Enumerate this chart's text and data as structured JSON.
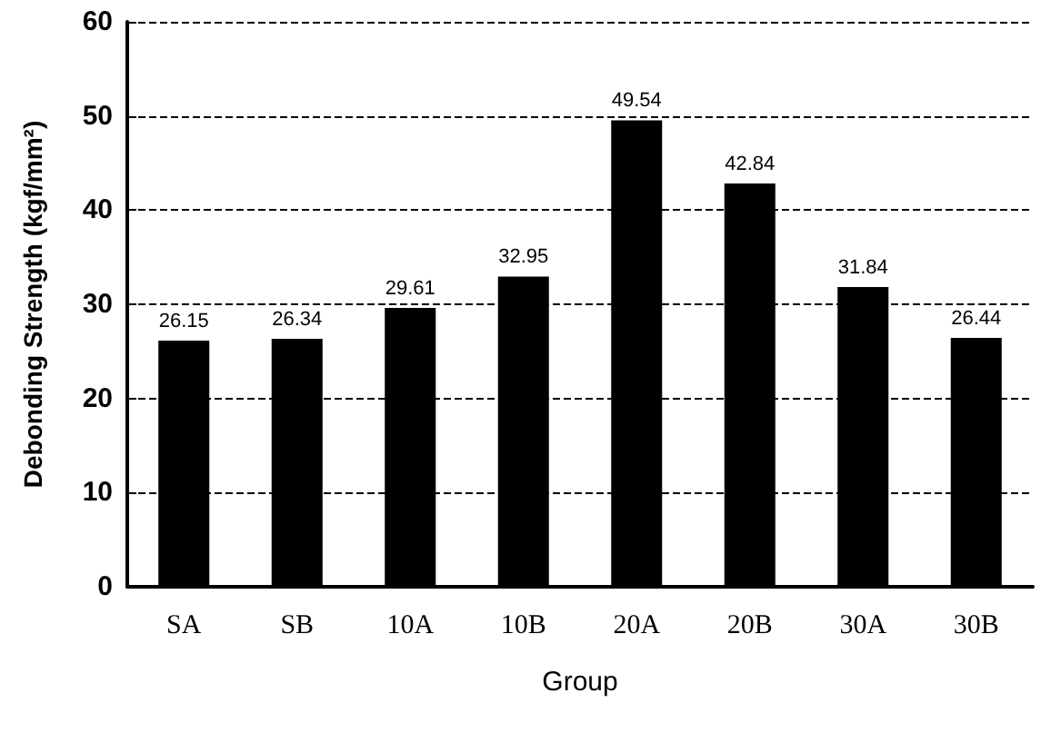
{
  "chart_data": {
    "type": "bar",
    "xlabel": "Group",
    "ylabel": "Debonding Strength (kgf/mm²)",
    "categories": [
      "SA",
      "SB",
      "10A",
      "10B",
      "20A",
      "20B",
      "30A",
      "30B"
    ],
    "values": [
      26.15,
      26.34,
      29.61,
      32.95,
      49.54,
      42.84,
      31.84,
      26.44
    ],
    "color": "#000000",
    "ylim": [
      0,
      60
    ],
    "yticks": [
      0,
      10,
      20,
      30,
      40,
      50,
      60
    ],
    "grid": "y",
    "data_labels": true
  }
}
